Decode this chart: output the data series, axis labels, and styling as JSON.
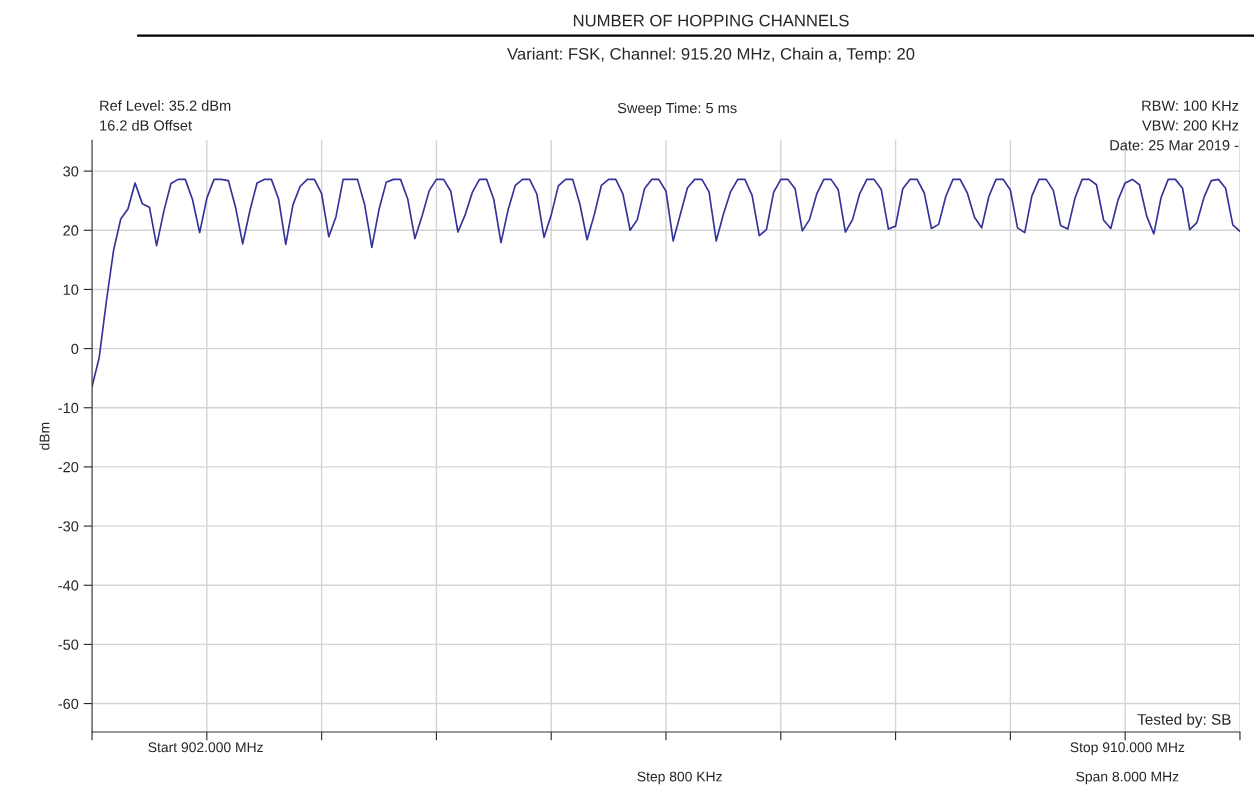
{
  "chart_data": {
    "type": "line",
    "title": "NUMBER OF HOPPING CHANNELS",
    "subtitle": "Variant: FSK, Channel: 915.20 MHz, Chain a, Temp: 20",
    "ylabel": "dBm",
    "annotations": [
      "Ref Level: 35.2 dBm",
      "16.2 dB Offset",
      "Sweep Time: 5 ms",
      "RBW: 100 KHz",
      "VBW: 200 KHz",
      "Date: 25 Mar 2019 -",
      "Tested by: SB",
      "Start 902.000 MHz",
      "Stop 910.000 MHz",
      "Step 800 KHz",
      "Span 8.000 MHz"
    ],
    "categories": [
      null,
      null,
      null,
      null,
      null,
      null,
      null,
      null,
      null,
      null,
      null,
      null,
      null,
      null,
      null,
      null,
      null,
      null,
      null,
      null,
      null,
      null,
      null,
      null,
      null,
      null,
      null,
      null,
      null,
      null,
      null,
      null,
      null,
      null,
      null,
      null,
      null,
      null,
      null,
      null,
      null,
      null,
      null,
      null,
      null,
      null,
      null,
      null,
      null,
      null,
      null,
      null,
      null,
      null,
      null,
      null,
      null,
      null,
      null,
      null,
      null,
      null,
      null,
      null,
      null,
      null,
      null,
      null,
      null,
      null,
      null,
      null,
      null,
      null,
      null,
      null,
      null,
      null,
      null,
      null,
      null,
      null,
      null,
      null,
      null,
      null,
      null,
      null,
      null,
      null,
      null,
      null,
      null,
      null,
      null,
      null,
      null,
      null,
      null,
      null,
      null,
      null,
      null,
      null,
      null,
      null,
      null,
      null,
      null,
      null,
      null,
      null,
      null,
      null,
      null,
      null,
      null,
      null,
      null,
      null,
      null,
      null,
      null,
      null,
      null,
      null,
      null,
      null,
      null,
      null,
      null,
      null,
      null,
      null,
      null,
      null,
      null,
      null,
      null,
      null,
      null,
      null,
      null,
      null,
      null,
      null,
      null,
      null,
      null,
      null,
      null,
      null,
      null,
      null,
      null,
      null,
      null,
      null,
      null,
      null,
      null
    ],
    "ylim": [
      -64.8,
      35.2
    ],
    "yticks": [
      -60,
      -50,
      -40,
      -30,
      -20,
      -10,
      0,
      10,
      20,
      30
    ],
    "grid": true,
    "marker": "none",
    "line_style": "solid",
    "series": [
      {
        "color": "#33339a",
        "values": [
          -6.4,
          -1.5,
          8.0,
          16.6,
          21.9,
          23.6,
          28.0,
          24.5,
          23.9,
          17.4,
          23.2,
          27.9,
          28.6,
          28.6,
          25.2,
          19.6,
          25.4,
          28.6,
          28.6,
          28.4,
          23.9,
          17.7,
          23.3,
          28.0,
          28.6,
          28.6,
          25.3,
          17.6,
          24.3,
          27.4,
          28.6,
          28.6,
          26.2,
          18.9,
          22.3,
          28.6,
          28.6,
          28.6,
          24.3,
          17.1,
          23.5,
          28.1,
          28.6,
          28.6,
          25.3,
          18.6,
          22.4,
          26.7,
          28.6,
          28.6,
          26.6,
          19.7,
          22.6,
          26.4,
          28.6,
          28.6,
          25.2,
          17.9,
          23.5,
          27.6,
          28.6,
          28.6,
          26.1,
          18.8,
          22.6,
          27.5,
          28.6,
          28.6,
          24.4,
          18.4,
          22.6,
          27.6,
          28.6,
          28.6,
          26.1,
          20.0,
          21.8,
          27.0,
          28.6,
          28.6,
          26.6,
          18.2,
          22.7,
          27.2,
          28.6,
          28.6,
          26.5,
          18.2,
          22.7,
          26.5,
          28.6,
          28.6,
          25.9,
          19.1,
          20.1,
          26.4,
          28.6,
          28.6,
          27.0,
          19.9,
          21.8,
          26.1,
          28.6,
          28.6,
          26.9,
          19.7,
          21.8,
          26.2,
          28.6,
          28.6,
          26.9,
          20.2,
          20.7,
          27.0,
          28.6,
          28.6,
          26.3,
          20.3,
          21.0,
          25.7,
          28.6,
          28.6,
          26.3,
          22.2,
          20.4,
          25.7,
          28.6,
          28.6,
          26.8,
          20.4,
          19.6,
          25.8,
          28.6,
          28.6,
          26.7,
          20.8,
          20.2,
          25.4,
          28.6,
          28.6,
          27.7,
          21.7,
          20.3,
          25.1,
          28.0,
          28.6,
          27.7,
          22.4,
          19.4,
          25.5,
          28.6,
          28.6,
          27.1,
          20.1,
          21.3,
          25.6,
          28.4,
          28.6,
          27.1,
          20.9,
          19.8
        ]
      }
    ]
  }
}
